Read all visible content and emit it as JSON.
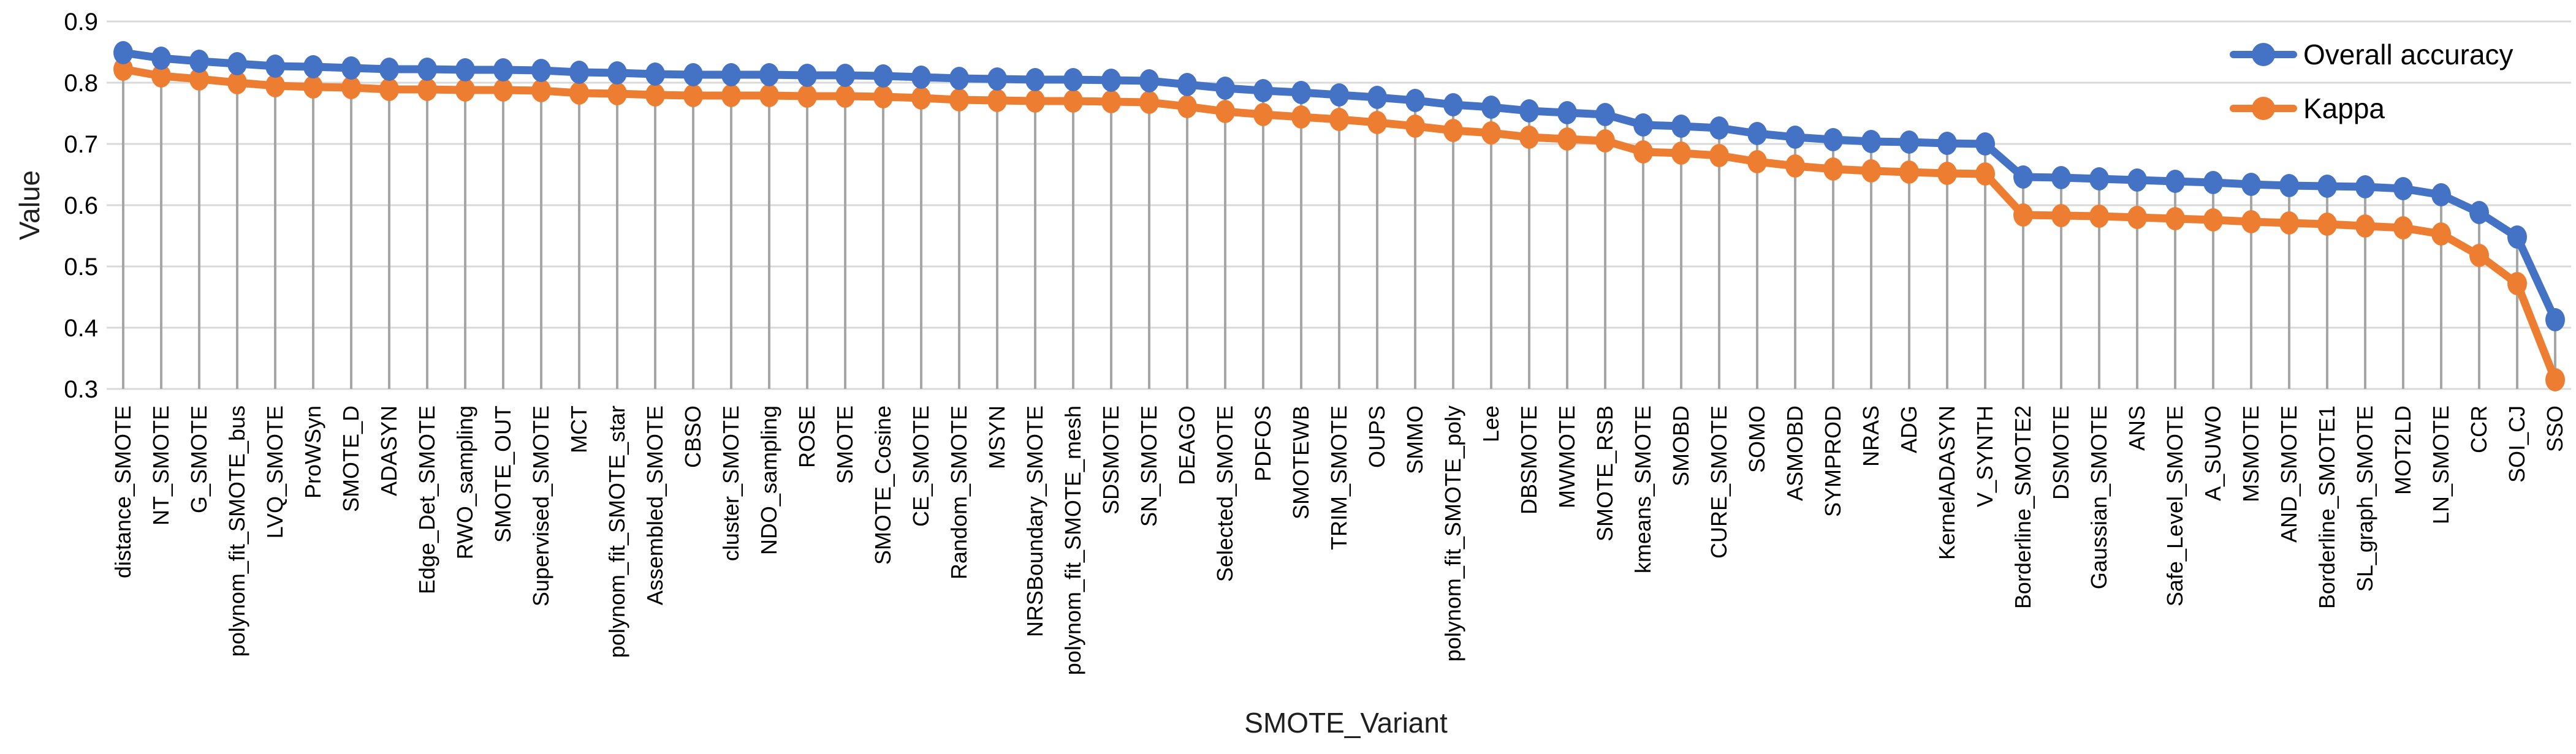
{
  "chart_data": {
    "type": "line",
    "title": "",
    "xlabel": "SMOTE_Variant",
    "ylabel": "Value",
    "ylim": [
      0.3,
      0.9
    ],
    "yticks": [
      0.9,
      0.8,
      0.7,
      0.6,
      0.5,
      0.4,
      0.3
    ],
    "grid": "horizontal",
    "legend_position": "top-right",
    "marker": "circle",
    "categories": [
      "distance_SMOTE",
      "NT_SMOTE",
      "G_SMOTE",
      "polynom_fit_SMOTE_bus",
      "LVQ_SMOTE",
      "ProWSyn",
      "SMOTE_D",
      "ADASYN",
      "Edge_Det_SMOTE",
      "RWO_sampling",
      "SMOTE_OUT",
      "Supervised_SMOTE",
      "MCT",
      "polynom_fit_SMOTE_star",
      "Assembled_SMOTE",
      "CBSO",
      "cluster_SMOTE",
      "NDO_sampling",
      "ROSE",
      "SMOTE",
      "SMOTE_Cosine",
      "CE_SMOTE",
      "Random_SMOTE",
      "MSYN",
      "NRSBoundary_SMOTE",
      "polynom_fit_SMOTE_mesh",
      "SDSMOTE",
      "SN_SMOTE",
      "DEAGO",
      "Selected_SMOTE",
      "PDFOS",
      "SMOTEWB",
      "TRIM_SMOTE",
      "OUPS",
      "SMMO",
      "polynom_fit_SMOTE_poly",
      "Lee",
      "DBSMOTE",
      "MWMOTE",
      "SMOTE_RSB",
      "kmeans_SMOTE",
      "SMOBD",
      "CURE_SMOTE",
      "SOMO",
      "ASMOBD",
      "SYMPROD",
      "NRAS",
      "ADG",
      "KernelADASYN",
      "V_SYNTH",
      "Borderline_SMOTE2",
      "DSMOTE",
      "Gaussian_SMOTE",
      "ANS",
      "Safe_Level_SMOTE",
      "A_SUWO",
      "MSMOTE",
      "AND_SMOTE",
      "Borderline_SMOTE1",
      "SL_graph_SMOTE",
      "MOT2LD",
      "LN_SMOTE",
      "CCR",
      "SOI_CJ",
      "SSO"
    ],
    "series": [
      {
        "name": "Overall accuracy",
        "color": "#4472C4",
        "values": [
          0.849,
          0.84,
          0.835,
          0.831,
          0.827,
          0.826,
          0.824,
          0.822,
          0.822,
          0.821,
          0.821,
          0.82,
          0.817,
          0.816,
          0.814,
          0.813,
          0.813,
          0.813,
          0.812,
          0.812,
          0.811,
          0.809,
          0.807,
          0.806,
          0.805,
          0.805,
          0.804,
          0.803,
          0.797,
          0.791,
          0.787,
          0.784,
          0.78,
          0.776,
          0.771,
          0.764,
          0.76,
          0.754,
          0.751,
          0.748,
          0.731,
          0.729,
          0.726,
          0.717,
          0.711,
          0.707,
          0.704,
          0.703,
          0.701,
          0.7,
          0.646,
          0.645,
          0.643,
          0.641,
          0.639,
          0.637,
          0.634,
          0.632,
          0.631,
          0.63,
          0.627,
          0.617,
          0.588,
          0.548,
          0.413
        ]
      },
      {
        "name": "Kappa",
        "color": "#ED7D31",
        "values": [
          0.822,
          0.811,
          0.806,
          0.8,
          0.795,
          0.793,
          0.792,
          0.789,
          0.789,
          0.788,
          0.788,
          0.787,
          0.783,
          0.782,
          0.78,
          0.779,
          0.779,
          0.779,
          0.778,
          0.778,
          0.777,
          0.775,
          0.772,
          0.771,
          0.77,
          0.77,
          0.769,
          0.768,
          0.761,
          0.753,
          0.748,
          0.744,
          0.74,
          0.735,
          0.729,
          0.722,
          0.718,
          0.711,
          0.708,
          0.705,
          0.687,
          0.685,
          0.681,
          0.671,
          0.664,
          0.659,
          0.656,
          0.654,
          0.652,
          0.651,
          0.584,
          0.583,
          0.582,
          0.58,
          0.578,
          0.576,
          0.573,
          0.571,
          0.569,
          0.566,
          0.563,
          0.553,
          0.518,
          0.472,
          0.315
        ]
      }
    ]
  },
  "colors": {
    "gridline": "#D9D9D9",
    "dropline": "#A6A6A6",
    "axis_text": "#000000",
    "background": "#FFFFFF"
  }
}
